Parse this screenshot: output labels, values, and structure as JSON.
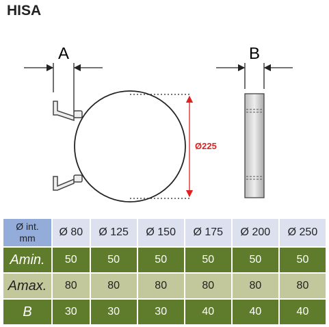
{
  "header": {
    "title": "HISA"
  },
  "diagram": {
    "label_a": "A",
    "label_b": "B",
    "diameter": "Ø225"
  },
  "table": {
    "header": [
      [
        "Ø int.",
        "mm"
      ],
      "Ø 80",
      "Ø 125",
      "Ø 150",
      "Ø 175",
      "Ø 200",
      "Ø 250"
    ],
    "rows": [
      [
        "Amin.",
        "50",
        "50",
        "50",
        "50",
        "50",
        "50"
      ],
      [
        "Amax.",
        "80",
        "80",
        "80",
        "80",
        "80",
        "80"
      ],
      [
        "B",
        "30",
        "30",
        "30",
        "40",
        "40",
        "40"
      ]
    ]
  }
}
